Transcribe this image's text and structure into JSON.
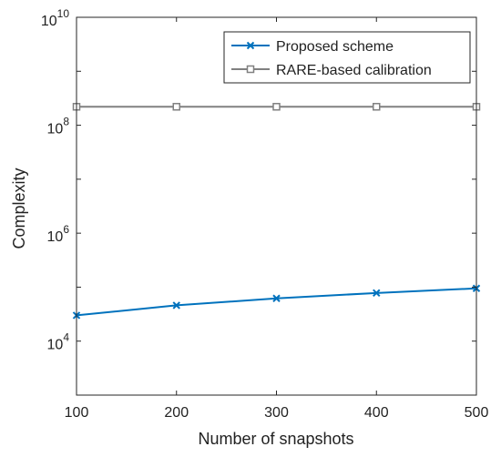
{
  "chart_data": {
    "type": "line",
    "title": "",
    "xlabel": "Number of snapshots",
    "ylabel": "Complexity",
    "x": [
      100,
      200,
      300,
      400,
      500
    ],
    "xlim": [
      100,
      500
    ],
    "ylim": [
      1000,
      10000000000
    ],
    "yscale": "log",
    "x_ticks": [
      100,
      200,
      300,
      400,
      500
    ],
    "y_ticks": [
      {
        "value": 10000,
        "base": "10",
        "exp": "4"
      },
      {
        "value": 1000000,
        "base": "10",
        "exp": "6"
      },
      {
        "value": 100000000,
        "base": "10",
        "exp": "8"
      },
      {
        "value": 10000000000,
        "base": "10",
        "exp": "10"
      }
    ],
    "grid": false,
    "legend_position": "top-right",
    "series": [
      {
        "name": "Proposed scheme",
        "values": [
          30000,
          46000,
          62000,
          78000,
          95000
        ],
        "color": "#0072BD",
        "marker": "x"
      },
      {
        "name": "RARE-based calibration",
        "values": [
          220000000,
          220000000,
          220000000,
          220000000,
          220000000
        ],
        "color": "#808080",
        "marker": "square"
      }
    ]
  }
}
